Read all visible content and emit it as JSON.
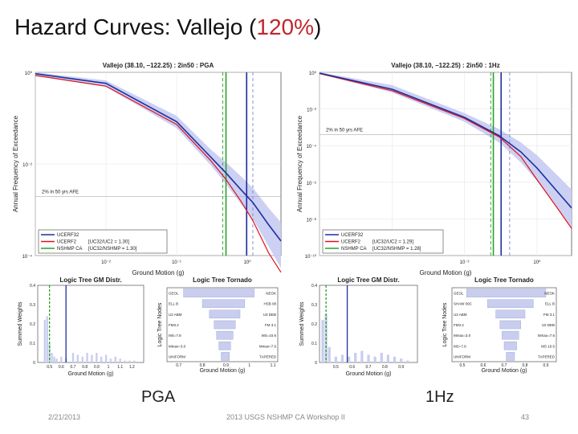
{
  "slide": {
    "title_prefix": "Hazard Curves: Vallejo (",
    "title_highlight": "120%",
    "title_suffix": ")",
    "label_left": "PGA",
    "label_right": "1Hz",
    "footer_date": "2/21/2013",
    "footer_event": "2013 USGS NSHMP CA Workshop II",
    "footer_page": "43"
  },
  "colors": {
    "ucerf3": "#1f2f9e",
    "ucerf2": "#e0141c",
    "nshmp": "#2aa12a",
    "band": "#c6cbf2",
    "hist": "#c9cdee"
  },
  "chart_data": [
    {
      "type": "line",
      "title": "Vallejo (38.10, −122.25) : 2in50 : PGA",
      "xlabel": "Ground Motion (g)",
      "ylabel": "Annual Frequency of Exceedance",
      "xscale": "log",
      "yscale": "log",
      "xlim": [
        0.001,
        3
      ],
      "ylim": [
        1e-05,
        1
      ],
      "xticks": [
        "10⁻²",
        "10⁻¹",
        "10⁰"
      ],
      "yticks": [
        "10⁰",
        "10⁻²",
        "10⁻⁴"
      ],
      "annotation": "2% in 50 yrs AFE",
      "afe_2in50": 0.000404,
      "series": [
        {
          "name": "UCERF32",
          "x": [
            0.001,
            0.01,
            0.1,
            0.3,
            0.5,
            0.8,
            1.2,
            2,
            3
          ],
          "y": [
            0.92,
            0.5,
            0.045,
            0.005,
            0.0018,
            0.00065,
            0.00028,
            7e-05,
            2.5e-05
          ]
        },
        {
          "name": "UCERF2",
          "x": [
            0.001,
            0.01,
            0.1,
            0.3,
            0.5,
            0.8,
            1.2,
            2,
            3
          ],
          "y": [
            0.82,
            0.42,
            0.038,
            0.004,
            0.0012,
            0.00032,
            9e-05,
            1.2e-05,
            3.5e-06
          ]
        },
        {
          "name": "UCERF3 band lower",
          "x": [
            0.001,
            0.01,
            0.1,
            0.3,
            0.5,
            0.8,
            1.2,
            2,
            3
          ],
          "y": [
            0.8,
            0.4,
            0.03,
            0.003,
            0.0009,
            0.00027,
            0.0001,
            1.8e-05,
            4.5e-06
          ]
        },
        {
          "name": "UCERF3 band upper",
          "x": [
            0.001,
            0.01,
            0.1,
            0.3,
            0.5,
            0.8,
            1.2,
            2,
            3
          ],
          "y": [
            1,
            0.6,
            0.065,
            0.008,
            0.0035,
            0.0015,
            0.0007,
            0.0002,
            8e-05
          ]
        }
      ],
      "vlines": [
        {
          "series": "UCERF32",
          "x": 0.98,
          "style": "solid"
        },
        {
          "series": "UCERF32 range",
          "x": 1.2,
          "style": "dashed"
        },
        {
          "series": "NSHMP CA",
          "x": 0.5,
          "style": "solid"
        },
        {
          "series": "NSHMP CA range",
          "x": 0.45,
          "style": "dashed"
        }
      ],
      "legend": [
        {
          "name": "UCERF32",
          "note": ""
        },
        {
          "name": "UCERF2",
          "note": "[UC32/UC2 = 1.30]"
        },
        {
          "name": "NSHMP CA",
          "note": "[UC32/NSHMP = 1.30]"
        }
      ]
    },
    {
      "type": "line",
      "title": "Vallejo (38.10, −122.25) : 2in50 : 1Hz",
      "xlabel": "Ground Motion (g)",
      "ylabel": "Annual Frequency of Exceedance",
      "xscale": "log",
      "yscale": "log",
      "xlim": [
        0.001,
        3
      ],
      "ylim": [
        1e-10,
        1
      ],
      "xticks": [
        "10⁻²",
        "10⁰"
      ],
      "yticks": [
        "10⁰",
        "10⁻²",
        "10⁻⁴",
        "10⁻⁶",
        "10⁻⁸",
        "10⁻¹⁰"
      ],
      "annotation": "2% in 50 yrs AFE",
      "afe_2in50": 0.000404,
      "series": [
        {
          "name": "UCERF32",
          "x": [
            0.001,
            0.01,
            0.1,
            0.3,
            0.6,
            1,
            2,
            3
          ],
          "y": [
            0.9,
            0.12,
            0.0035,
            0.00035,
            4.5e-05,
            6e-06,
            2.5e-07,
            4e-08
          ]
        },
        {
          "name": "UCERF2",
          "x": [
            0.001,
            0.01,
            0.1,
            0.3,
            0.6,
            1,
            2,
            3
          ],
          "y": [
            0.85,
            0.1,
            0.003,
            0.0003,
            2.5e-05,
            1.4e-06,
            3e-08,
            3e-09
          ]
        },
        {
          "name": "UCERF3 band lower",
          "x": [
            0.001,
            0.01,
            0.1,
            0.3,
            0.6,
            1,
            2,
            3
          ],
          "y": [
            0.8,
            0.08,
            0.002,
            0.00015,
            1.2e-05,
            1.2e-06,
            3e-08,
            3e-09
          ]
        },
        {
          "name": "UCERF3 band upper",
          "x": [
            0.001,
            0.01,
            0.1,
            0.3,
            0.6,
            1,
            2,
            3
          ],
          "y": [
            1,
            0.2,
            0.006,
            0.0008,
            0.00015,
            3e-05,
            2e-06,
            4e-07
          ]
        }
      ],
      "vlines": [
        {
          "series": "UCERF32",
          "x": 0.32,
          "style": "solid"
        },
        {
          "series": "UCERF32 range",
          "x": 0.42,
          "style": "dashed"
        },
        {
          "series": "NSHMP CA",
          "x": 0.25,
          "style": "solid"
        },
        {
          "series": "NSHMP CA range",
          "x": 0.23,
          "style": "dashed"
        }
      ],
      "legend": [
        {
          "name": "UCERF32",
          "note": ""
        },
        {
          "name": "UCERF2",
          "note": "[UC32/UC2 = 1.29]"
        },
        {
          "name": "NSHMP CA",
          "note": "[UC32/NSHMP = 1.28]"
        }
      ]
    },
    {
      "type": "bar",
      "title": "Logic Tree GM Distr.",
      "xlabel": "Ground Motion (g)",
      "ylabel": "Summed Weights",
      "xlim": [
        0.4,
        1.3
      ],
      "ylim": [
        0,
        0.4
      ],
      "xticks": [
        "0.5",
        "0.6",
        "0.7",
        "0.8",
        "0.9",
        "1",
        "1.1",
        "1.2"
      ],
      "yticks": [
        "0.4",
        "0.3",
        "0.2",
        "0.1",
        "0"
      ],
      "x": [
        0.46,
        0.48,
        0.5,
        0.52,
        0.54,
        0.56,
        0.6,
        0.64,
        0.7,
        0.74,
        0.78,
        0.82,
        0.86,
        0.9,
        0.94,
        0.98,
        1.02,
        1.06,
        1.1,
        1.14,
        1.18,
        1.22
      ],
      "values": [
        0.22,
        0.24,
        0.1,
        0.05,
        0.03,
        0.02,
        0.03,
        0.02,
        0.05,
        0.04,
        0.03,
        0.05,
        0.04,
        0.05,
        0.03,
        0.04,
        0.02,
        0.03,
        0.02,
        0.01,
        0.01,
        0.01
      ],
      "vlines": [
        {
          "series": "NSHMP CA",
          "x": 0.5
        },
        {
          "series": "UCERF32",
          "x": 0.64
        }
      ]
    },
    {
      "type": "bar",
      "title": "Logic Tree GM Distr.",
      "xlabel": "Ground Motion (g)",
      "ylabel": "Summed Weights",
      "xlim": [
        0.4,
        1.0
      ],
      "ylim": [
        0,
        0.4
      ],
      "xticks": [
        "0.5",
        "0.6",
        "0.7",
        "0.8",
        "0.9"
      ],
      "yticks": [
        "0.4",
        "0.3",
        "0.2",
        "0.1",
        "0"
      ],
      "x": [
        0.42,
        0.44,
        0.46,
        0.5,
        0.54,
        0.58,
        0.62,
        0.66,
        0.7,
        0.74,
        0.78,
        0.82,
        0.86,
        0.9,
        0.94
      ],
      "values": [
        0.22,
        0.25,
        0.08,
        0.03,
        0.04,
        0.03,
        0.05,
        0.06,
        0.04,
        0.03,
        0.05,
        0.04,
        0.03,
        0.02,
        0.01
      ],
      "vlines": [
        {
          "series": "NSHMP CA",
          "x": 0.44
        },
        {
          "series": "UCERF32",
          "x": 0.57
        }
      ]
    },
    {
      "type": "table",
      "title": "Logic Tree Tornado",
      "xlabel": "Ground Motion (g)",
      "ylabel": "Logic Tree Nodes",
      "xticks": [
        "0.7",
        "0.8",
        "0.9",
        "1",
        "1.1"
      ],
      "rows": [
        {
          "left": "GEOL",
          "right": "NEOK"
        },
        {
          "left": "ELL B",
          "right": "HSB 08"
        },
        {
          "left": "U2 ABM",
          "right": "U3 DEB"
        },
        {
          "left": "FM3.2",
          "right": "FM 3.1"
        },
        {
          "left": "MS=7.8",
          "right": "MS=10.6"
        },
        {
          "left": "Mmax=3.0",
          "right": "Mmax=7.6"
        },
        {
          "left": "UNIFORM",
          "right": "TAPERED"
        }
      ],
      "low": [
        0.72,
        0.8,
        0.83,
        0.85,
        0.86,
        0.87,
        0.88
      ],
      "high": [
        1.02,
        0.98,
        0.96,
        0.94,
        0.93,
        0.92,
        0.915
      ]
    },
    {
      "type": "table",
      "title": "Logic Tree Tornado",
      "xlabel": "Ground Motion (g)",
      "ylabel": "Logic Tree Nodes",
      "xticks": [
        "0.5",
        "0.6",
        "0.7",
        "0.8",
        "0.9"
      ],
      "rows": [
        {
          "left": "GEOL",
          "right": "NEOK"
        },
        {
          "left": "SHAW 09C",
          "right": "ELL B"
        },
        {
          "left": "U2 ABM",
          "right": "FM 3.1"
        },
        {
          "left": "FM3.2",
          "right": "U2 DEB"
        },
        {
          "left": "Mmax=3.0",
          "right": "Mmax=7.6"
        },
        {
          "left": "MS=7.8",
          "right": "MS 10.6"
        },
        {
          "left": "UNIFORM",
          "right": "TAPERED"
        }
      ],
      "low": [
        0.52,
        0.62,
        0.66,
        0.68,
        0.69,
        0.7,
        0.71
      ],
      "high": [
        0.9,
        0.84,
        0.8,
        0.78,
        0.77,
        0.76,
        0.75
      ]
    }
  ]
}
